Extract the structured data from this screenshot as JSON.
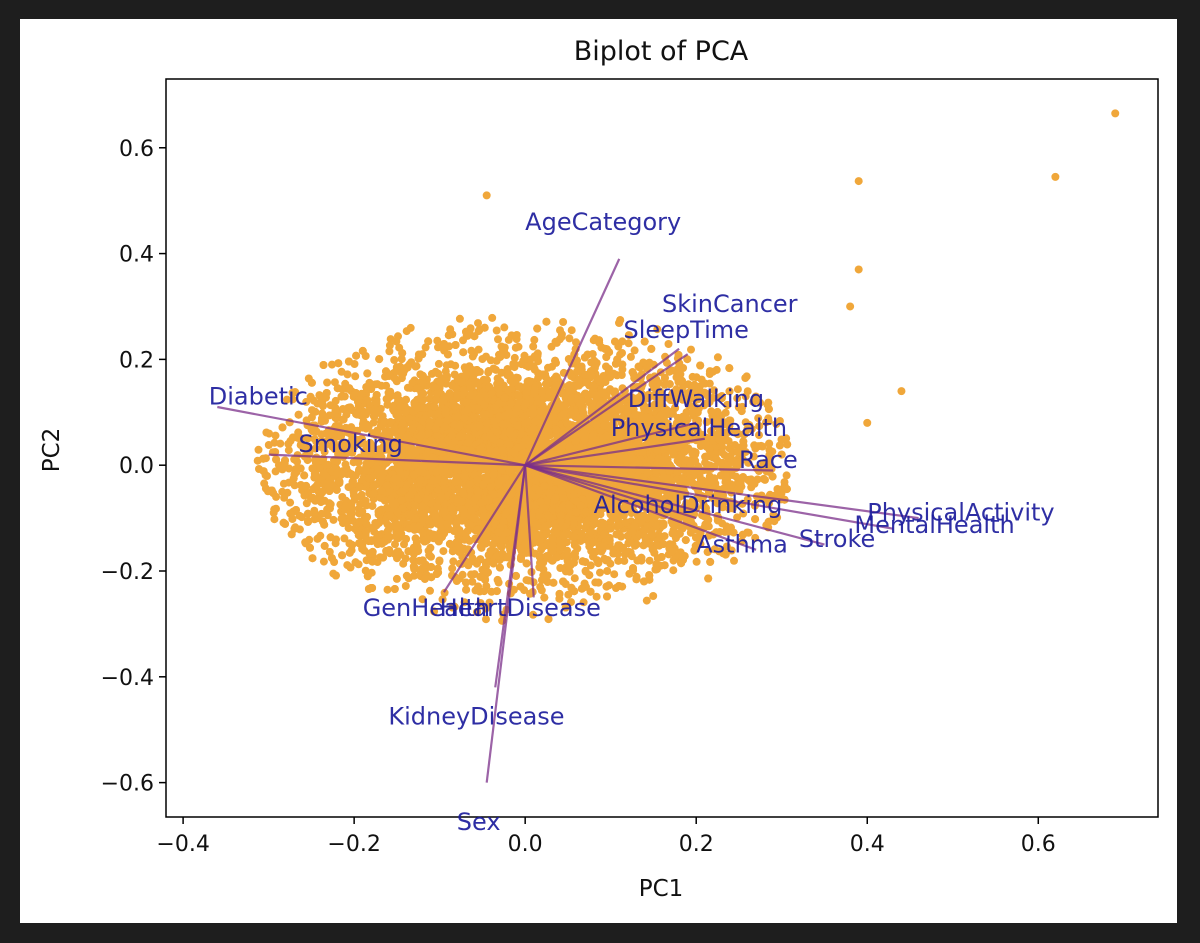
{
  "chart_data": {
    "type": "scatter",
    "title": "Biplot of PCA",
    "xlabel": "PC1",
    "ylabel": "PC2",
    "xlim": [
      -0.42,
      0.74
    ],
    "ylim": [
      -0.665,
      0.73
    ],
    "xticks": [
      -0.4,
      -0.2,
      0.0,
      0.2,
      0.4,
      0.6
    ],
    "xtick_labels": [
      "−0.4",
      "−0.2",
      "0.0",
      "0.2",
      "0.4",
      "0.6"
    ],
    "yticks": [
      0.6,
      0.4,
      0.2,
      0.0,
      -0.2,
      -0.4,
      -0.6
    ],
    "ytick_labels": [
      "0.6",
      "0.4",
      "0.2",
      "0.0",
      "−0.2",
      "−0.4",
      "−0.6"
    ],
    "grid": false,
    "point_color": "#f0a73a",
    "arrow_color": "#7b2f8a",
    "label_color": "#1c1c9c",
    "scores_cloud": {
      "x_center": 0.0,
      "y_center": 0.0,
      "x_spread": 0.3,
      "y_spread": 0.22,
      "n_points": 9000
    },
    "scores_outliers": [
      {
        "x": 0.69,
        "y": 0.665
      },
      {
        "x": 0.62,
        "y": 0.545
      },
      {
        "x": 0.39,
        "y": 0.537
      },
      {
        "x": 0.39,
        "y": 0.37
      },
      {
        "x": -0.045,
        "y": 0.51
      },
      {
        "x": 0.44,
        "y": 0.14
      },
      {
        "x": 0.4,
        "y": 0.08
      },
      {
        "x": 0.38,
        "y": 0.3
      }
    ],
    "loadings": [
      {
        "name": "AgeCategory",
        "x": 0.11,
        "y": 0.39,
        "label_x": 0.0,
        "label_y": 0.445
      },
      {
        "name": "SkinCancer",
        "x": 0.19,
        "y": 0.21,
        "label_x": 0.16,
        "label_y": 0.29
      },
      {
        "name": "SleepTime",
        "x": 0.18,
        "y": 0.22,
        "label_x": 0.115,
        "label_y": 0.24
      },
      {
        "name": "Diabetic",
        "x": -0.36,
        "y": 0.11,
        "label_x": -0.37,
        "label_y": 0.115
      },
      {
        "name": "Smoking",
        "x": -0.3,
        "y": 0.02,
        "label_x": -0.265,
        "label_y": 0.025
      },
      {
        "name": "DiffWalking",
        "x": 0.2,
        "y": 0.08,
        "label_x": 0.12,
        "label_y": 0.11
      },
      {
        "name": "PhysicalHealth",
        "x": 0.21,
        "y": 0.05,
        "label_x": 0.1,
        "label_y": 0.055
      },
      {
        "name": "Race",
        "x": 0.29,
        "y": -0.01,
        "label_x": 0.25,
        "label_y": -0.005
      },
      {
        "name": "AlcoholDrinking",
        "x": 0.2,
        "y": -0.1,
        "label_x": 0.08,
        "label_y": -0.09
      },
      {
        "name": "PhysicalActivity",
        "x": 0.46,
        "y": -0.1,
        "label_x": 0.4,
        "label_y": -0.105
      },
      {
        "name": "MentalHealth",
        "x": 0.43,
        "y": -0.12,
        "label_x": 0.385,
        "label_y": -0.128
      },
      {
        "name": "Stroke",
        "x": 0.35,
        "y": -0.15,
        "label_x": 0.32,
        "label_y": -0.155
      },
      {
        "name": "Asthma",
        "x": 0.27,
        "y": -0.16,
        "label_x": 0.2,
        "label_y": -0.165
      },
      {
        "name": "GenHealth",
        "x": -0.095,
        "y": -0.24,
        "label_x": -0.19,
        "label_y": -0.285
      },
      {
        "name": "HeartDisease",
        "x": 0.01,
        "y": -0.25,
        "label_x": -0.1,
        "label_y": -0.285
      },
      {
        "name": "KidneyDisease",
        "x": -0.035,
        "y": -0.42,
        "label_x": -0.16,
        "label_y": -0.49
      },
      {
        "name": "Sex",
        "x": -0.045,
        "y": -0.6,
        "label_x": -0.08,
        "label_y": -0.69
      }
    ]
  }
}
